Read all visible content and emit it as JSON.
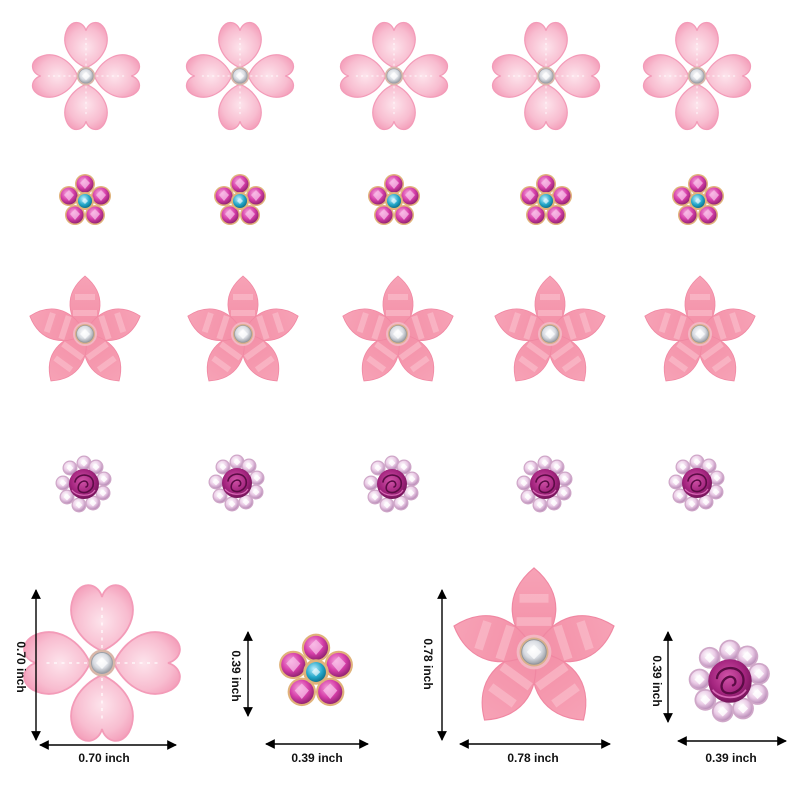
{
  "product_grid": {
    "rows": [
      {
        "type": "clover-heart-petal",
        "count": 5
      },
      {
        "type": "rhinestone-daisy",
        "count": 5
      },
      {
        "type": "star-petal",
        "count": 5
      },
      {
        "type": "rose-rhinestone",
        "count": 5
      }
    ]
  },
  "dimensions": [
    {
      "type": "clover-heart-petal",
      "width": "0.70 inch",
      "height": "0.70 inch"
    },
    {
      "type": "rhinestone-daisy",
      "width": "0.39 inch",
      "height": "0.39 inch"
    },
    {
      "type": "star-petal",
      "width": "0.78 inch",
      "height": "0.78 inch"
    },
    {
      "type": "rose-rhinestone",
      "width": "0.39 inch",
      "height": "0.39 inch"
    }
  ],
  "colors": {
    "clover_petal": "#f7b6cb",
    "clover_petal_edge": "#f59ab6",
    "daisy_stone": "#d63fa9",
    "daisy_center": "#22a6c8",
    "star_petal": "#f79eb1",
    "star_stripe": "#fbc1cd",
    "rose": "#a3247e",
    "rose_stone": "#e9c8e4",
    "crystal": "#e6e9ee",
    "arrow": "#000000"
  }
}
